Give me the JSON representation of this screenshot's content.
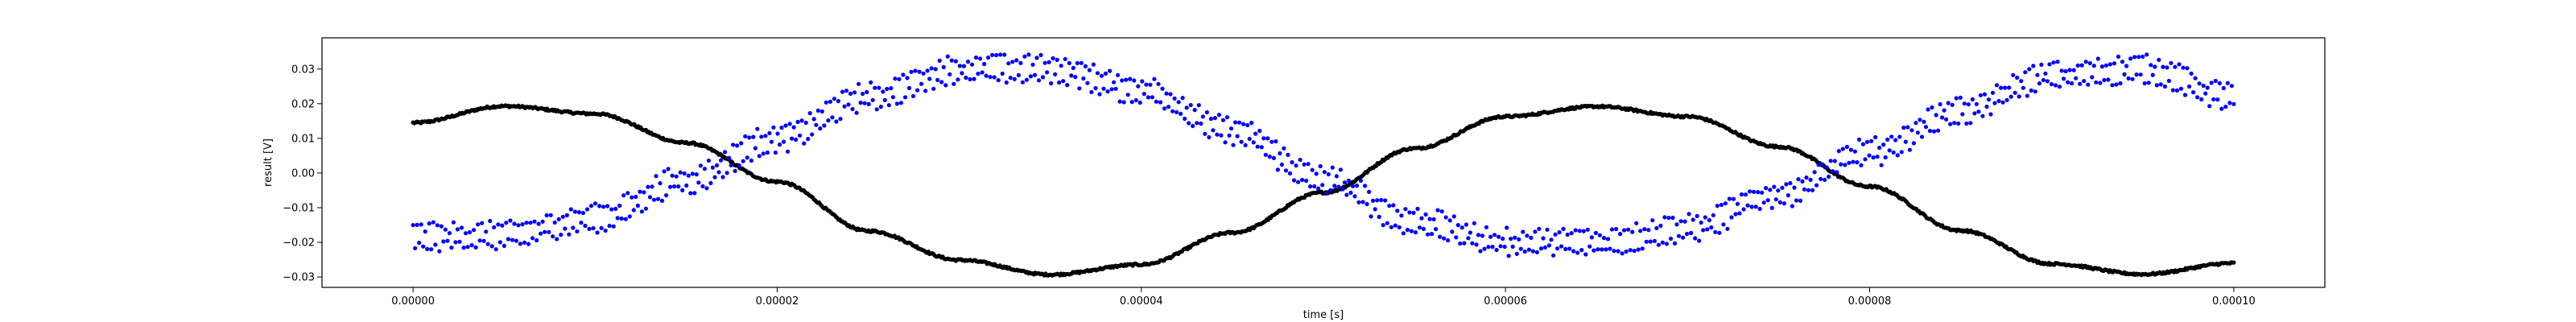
{
  "chart_data": {
    "type": "scatter",
    "title": "",
    "xlabel": "time [s]",
    "ylabel": "result [V]",
    "xlim": [
      -5e-06,
      0.000105
    ],
    "ylim": [
      -0.033,
      0.039
    ],
    "x_ticks": [
      0,
      2e-05,
      4e-05,
      6e-05,
      8e-05,
      0.0001
    ],
    "x_tick_labels": [
      "0.00000",
      "0.00002",
      "0.00004",
      "0.00006",
      "0.00008",
      "0.00010"
    ],
    "y_ticks": [
      -0.03,
      -0.02,
      -0.01,
      0.0,
      0.01,
      0.02,
      0.03
    ],
    "y_tick_labels": [
      "−0.03",
      "−0.02",
      "−0.01",
      "0.00",
      "0.01",
      "0.02",
      "0.03"
    ],
    "grid": false,
    "legend": "none",
    "series": [
      {
        "color": "#000000",
        "description": "dense sinusoid, amplitude ≈ 0.0245 V, offset ≈ -0.005 V, period ≈ 0.00006 s",
        "x": [
          0,
          5e-06,
          1e-05,
          1.5e-05,
          2e-05,
          2.5e-05,
          3e-05,
          3.5e-05,
          4e-05,
          4.5e-05,
          5e-05,
          5.5e-05,
          6e-05,
          6.5e-05,
          7e-05,
          7.5e-05,
          8e-05,
          8.5e-05,
          9e-05,
          9.5e-05,
          0.0001
        ],
        "y": [
          0.0145,
          0.0193,
          0.0171,
          0.0087,
          -0.0025,
          -0.0167,
          -0.0251,
          -0.0293,
          -0.0264,
          -0.0172,
          -0.0056,
          0.0071,
          0.0163,
          0.0192,
          0.0163,
          0.0076,
          -0.0039,
          -0.0166,
          -0.0262,
          -0.0292,
          -0.026
        ]
      },
      {
        "color": "#0000ff",
        "description": "noisy sinusoid, two interleaved bands ≈ 0.005 V apart, amplitude ≈ 0.025 V, period ≈ 0.00006 s",
        "x": [
          0,
          5e-06,
          1e-05,
          1.5e-05,
          2e-05,
          2.5e-05,
          3e-05,
          3.5e-05,
          4e-05,
          4.5e-05,
          5e-05,
          5.5e-05,
          6e-05,
          6.5e-05,
          7e-05,
          7.5e-05,
          8e-05,
          8.5e-05,
          9e-05,
          9.5e-05,
          0.0001
        ],
        "y": [
          -0.0185,
          -0.018,
          -0.013,
          -0.002,
          0.01,
          0.022,
          0.03,
          0.03,
          0.024,
          0.012,
          -0.002,
          -0.014,
          -0.02,
          -0.02,
          -0.016,
          -0.006,
          0.006,
          0.018,
          0.028,
          0.03,
          0.022
        ]
      }
    ]
  }
}
